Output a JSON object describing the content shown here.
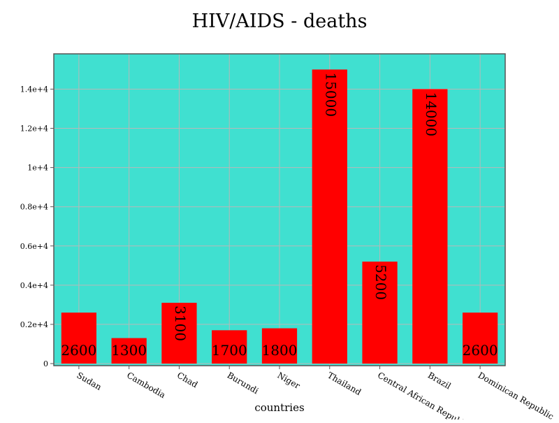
{
  "chart_data": {
    "type": "bar",
    "title": "HIV/AIDS - deaths",
    "xlabel": "countries",
    "ylabel": "",
    "categories": [
      "Sudan",
      "Cambodia",
      "Chad",
      "Burundi",
      "Niger",
      "Thailand",
      "Central African Republic",
      "Brazil",
      "Dominican Republic"
    ],
    "values": [
      2600,
      1300,
      3100,
      1700,
      1800,
      15000,
      5200,
      14000,
      2600
    ],
    "data_labels": [
      "2600",
      "1300",
      "3100",
      "1700",
      "1800",
      "15000",
      "5200",
      "14000",
      "2600"
    ],
    "yticks": [
      {
        "value": 0,
        "label": "0"
      },
      {
        "value": 2000,
        "label": "0.2e+4"
      },
      {
        "value": 4000,
        "label": "0.4e+4"
      },
      {
        "value": 6000,
        "label": "0.6e+4"
      },
      {
        "value": 8000,
        "label": "0.8e+4"
      },
      {
        "value": 10000,
        "label": "1e+4"
      },
      {
        "value": 12000,
        "label": "1.2e+4"
      },
      {
        "value": 14000,
        "label": "1.4e+4"
      }
    ],
    "ylim": [
      0,
      15800
    ],
    "grid": true,
    "legend": "none",
    "colors": {
      "plot_background": "#40e0d0",
      "bar": "#ff0000",
      "grid": "#b8b8b8",
      "axis": "#555555",
      "text": "#000000"
    }
  }
}
